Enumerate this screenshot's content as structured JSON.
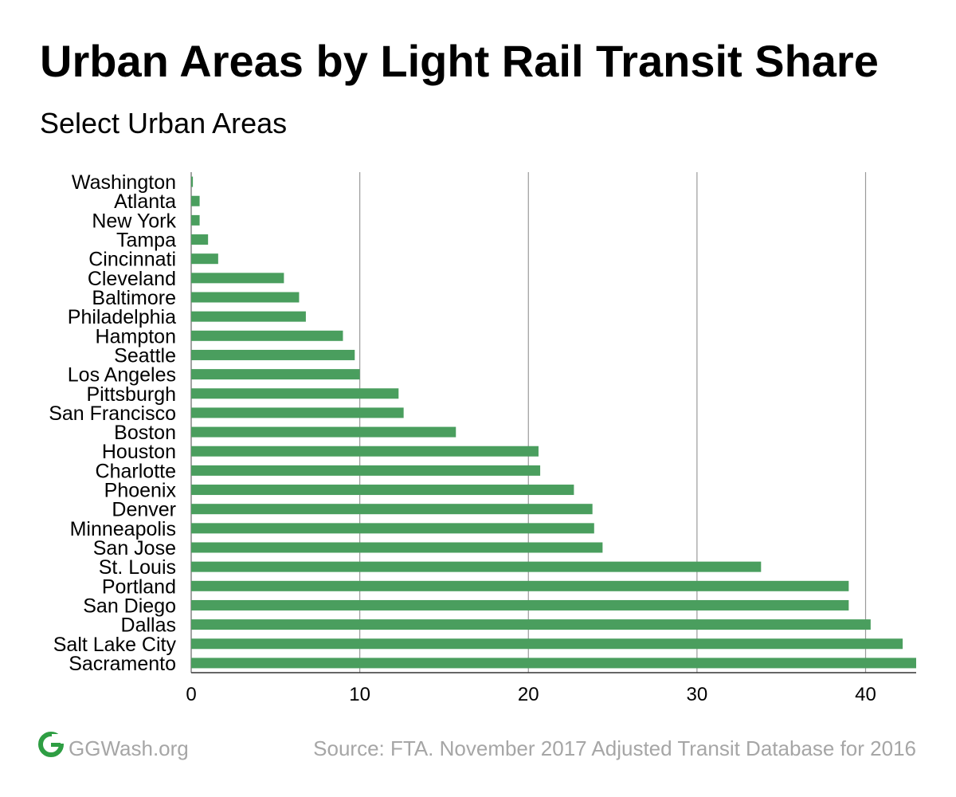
{
  "title": "Urban Areas by Light Rail Transit Share",
  "subtitle": "Select Urban Areas",
  "footer": {
    "site": "GGWash.org",
    "source": "Source: FTA. November 2017 Adjusted Transit Database for 2016",
    "logo_icon": "ggwash-logo-icon"
  },
  "colors": {
    "bar": "#4a9e5e",
    "grid": "#999999",
    "logo": "#2e9e43",
    "footer_text": "#a6a6a6"
  },
  "chart_data": {
    "type": "bar",
    "orientation": "horizontal",
    "categories": [
      "Washington",
      "Atlanta",
      "New York",
      "Tampa",
      "Cincinnati",
      "Cleveland",
      "Baltimore",
      "Philadelphia",
      "Hampton",
      "Seattle",
      "Los Angeles",
      "Pittsburgh",
      "San Francisco",
      "Boston",
      "Houston",
      "Charlotte",
      "Phoenix",
      "Denver",
      "Minneapolis",
      "San Jose",
      "St. Louis",
      "Portland",
      "San Diego",
      "Dallas",
      "Salt Lake City",
      "Sacramento"
    ],
    "values": [
      0.1,
      0.5,
      0.5,
      1.0,
      1.6,
      5.5,
      6.4,
      6.8,
      9.0,
      9.7,
      10.0,
      12.3,
      12.6,
      15.7,
      20.6,
      20.7,
      22.7,
      23.8,
      23.9,
      24.4,
      33.8,
      39.0,
      39.0,
      40.3,
      42.2,
      43.0
    ],
    "x_ticks": [
      0,
      10,
      20,
      30,
      40
    ],
    "xlim": [
      0,
      43
    ],
    "grid": true,
    "legend": "none"
  }
}
